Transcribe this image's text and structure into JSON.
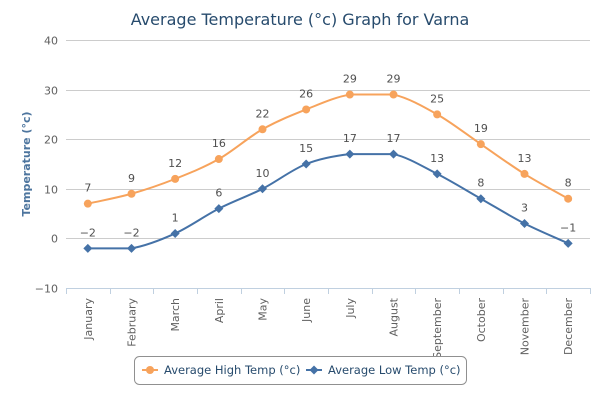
{
  "chart_data": {
    "type": "line",
    "title": "Average Temperature (°c) Graph for Varna",
    "xlabel": "",
    "ylabel": "Temperature (°c)",
    "ylim": [
      -10,
      40
    ],
    "yticks": [
      -10,
      0,
      10,
      20,
      30,
      40
    ],
    "categories": [
      "January",
      "February",
      "March",
      "April",
      "May",
      "June",
      "July",
      "August",
      "September",
      "October",
      "November",
      "December"
    ],
    "series": [
      {
        "name": "Average High Temp (°c)",
        "color": "#f7a35c",
        "marker": "circle",
        "values": [
          7,
          9,
          12,
          16,
          22,
          26,
          29,
          29,
          25,
          19,
          13,
          8
        ]
      },
      {
        "name": "Average Low Temp (°c)",
        "color": "#4572a7",
        "marker": "diamond",
        "values": [
          -2,
          -2,
          1,
          6,
          10,
          15,
          17,
          17,
          13,
          8,
          3,
          -1
        ]
      }
    ],
    "grid": true,
    "legend": "bottom-center"
  }
}
